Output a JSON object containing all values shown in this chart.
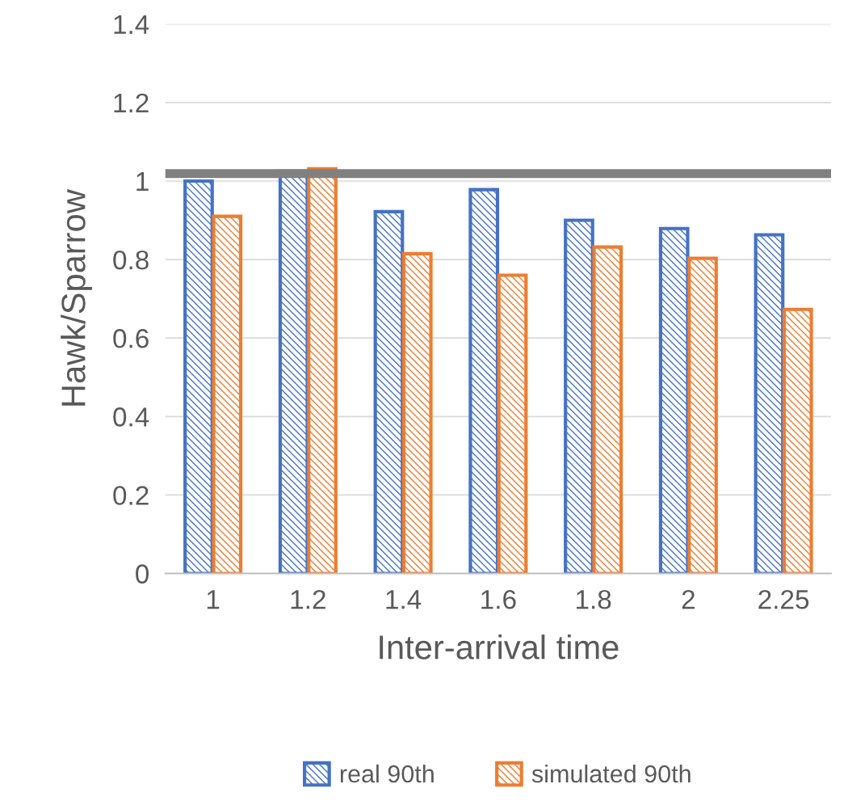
{
  "chart_data": {
    "type": "bar",
    "xlabel": "Inter-arrival time",
    "ylabel": "Hawk/Sparrow",
    "categories": [
      "1",
      "1.2",
      "1.4",
      "1.6",
      "1.8",
      "2",
      "2.25"
    ],
    "series": [
      {
        "name": "real 90th",
        "color": "#4472c4",
        "values": [
          1.0,
          1.025,
          0.922,
          0.978,
          0.9,
          0.879,
          0.863
        ]
      },
      {
        "name": "simulated 90th",
        "color": "#ed7d31",
        "values": [
          0.91,
          1.031,
          0.815,
          0.76,
          0.832,
          0.803,
          0.673
        ]
      }
    ],
    "ylim": [
      0,
      1.4
    ],
    "yticks": [
      0,
      0.2,
      0.4,
      0.6,
      0.8,
      1,
      1.2,
      1.4
    ],
    "ref_lines": [
      {
        "axis": "y",
        "value": 1.019,
        "color": "#808080"
      }
    ],
    "grid": "y",
    "legend": "bottom"
  }
}
